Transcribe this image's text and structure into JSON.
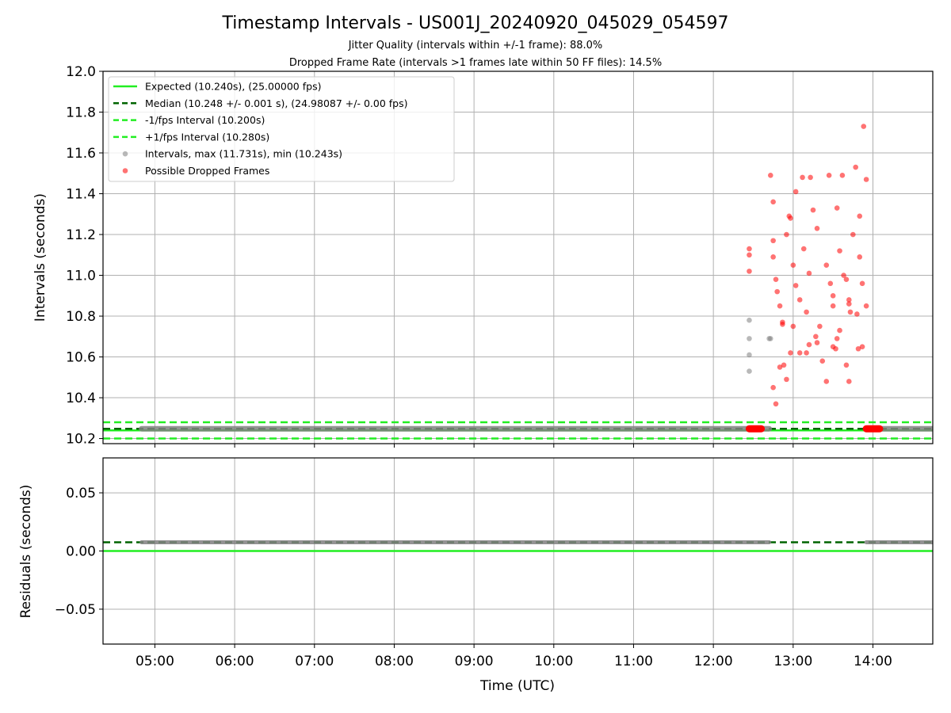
{
  "chart_data": {
    "type": "scatter",
    "title": "Timestamp Intervals - US001J_20240920_045029_054597",
    "subtitles": [
      "Jitter Quality (intervals within +/-1 frame): 88.0%",
      "Dropped Frame Rate (intervals >1 frames late within 50 FF files): 14.5%"
    ],
    "xlabel": "Time (UTC)",
    "x_ticks": [
      "05:00",
      "06:00",
      "07:00",
      "08:00",
      "09:00",
      "10:00",
      "11:00",
      "12:00",
      "13:00",
      "14:00"
    ],
    "x_range": [
      "04:21",
      "14:45"
    ],
    "grid": true,
    "legend_position": "top-left",
    "panels": [
      {
        "name": "intervals",
        "ylabel": "Intervals (seconds)",
        "ylim": [
          10.175,
          12.0
        ],
        "y_ticks": [
          "10.2",
          "10.4",
          "10.6",
          "10.8",
          "11.0",
          "11.2",
          "11.4",
          "11.6",
          "11.8",
          "12.0"
        ],
        "reference_lines": [
          {
            "label": "Expected (10.240s), (25.00000 fps)",
            "value": 10.24,
            "style": "solid",
            "color": "#22ee22"
          },
          {
            "label": "Median (10.248 +/- 0.001 s), (24.98087 +/- 0.00 fps)",
            "value": 10.248,
            "style": "dashed",
            "color": "#006400"
          },
          {
            "label": "-1/fps Interval (10.200s)",
            "value": 10.2,
            "style": "dashed",
            "color": "#22ee22"
          },
          {
            "label": "+1/fps Interval (10.280s)",
            "value": 10.28,
            "style": "dashed",
            "color": "#22ee22"
          }
        ],
        "series": [
          {
            "label": "Intervals, max (11.731s), min (10.243s)",
            "color": "#808080",
            "segments": [
              {
                "x_start": "04:50",
                "x_end": "12:42",
                "y": 10.248
              },
              {
                "x_start": "13:55",
                "x_end": "14:45",
                "y": 10.248
              }
            ],
            "x": [
              "12:27",
              "12:27",
              "12:27",
              "12:27",
              "12:42",
              "12:43"
            ],
            "y": [
              10.53,
              10.61,
              10.69,
              10.78,
              10.69,
              10.69
            ]
          },
          {
            "label": "Possible Dropped Frames",
            "color": "#ff0000",
            "clusters": [
              {
                "x_start": "12:27",
                "x_end": "12:36",
                "y": 10.248
              },
              {
                "x_start": "13:55",
                "x_end": "14:05",
                "y": 10.248
              }
            ],
            "x": [
              "12:27",
              "12:27",
              "12:27",
              "12:43",
              "12:45",
              "12:47",
              "12:48",
              "12:50",
              "12:52",
              "12:55",
              "12:58",
              "13:00",
              "13:02",
              "13:05",
              "13:08",
              "13:10",
              "13:12",
              "13:13",
              "13:18",
              "13:20",
              "13:25",
              "13:28",
              "13:30",
              "13:32",
              "13:33",
              "13:35",
              "13:40",
              "13:42",
              "13:45",
              "13:48",
              "13:50",
              "13:52",
              "13:53",
              "13:55",
              "13:07",
              "13:27",
              "13:55",
              "12:57",
              "13:15",
              "13:37",
              "13:02",
              "13:47",
              "12:53",
              "13:18",
              "13:40",
              "12:45",
              "13:10",
              "13:30",
              "13:52",
              "12:47",
              "13:22",
              "13:42",
              "12:55",
              "13:17",
              "13:35",
              "13:49",
              "12:58",
              "13:25",
              "13:12",
              "13:43",
              "12:52",
              "13:33",
              "13:05",
              "12:45",
              "12:50",
              "13:38",
              "13:50",
              "12:45",
              "13:00",
              "13:30",
              "13:42"
            ],
            "y": [
              11.13,
              11.1,
              11.02,
              11.49,
              11.09,
              10.98,
              10.92,
              10.85,
              10.77,
              11.2,
              11.28,
              11.05,
              10.95,
              10.88,
              11.13,
              10.82,
              11.01,
              11.48,
              11.23,
              10.75,
              11.05,
              10.96,
              10.85,
              10.64,
              11.33,
              11.12,
              10.98,
              10.88,
              11.2,
              10.81,
              11.09,
              10.96,
              11.73,
              10.85,
              11.48,
              11.49,
              11.47,
              11.29,
              11.32,
              11.49,
              11.41,
              11.53,
              10.56,
              10.67,
              10.56,
              10.45,
              10.62,
              10.65,
              10.65,
              10.37,
              10.58,
              10.48,
              10.49,
              10.7,
              10.73,
              10.64,
              10.62,
              10.48,
              10.66,
              10.82,
              10.76,
              10.69,
              10.62,
              11.36,
              10.55,
              11.0,
              11.29,
              11.17,
              10.75,
              10.9,
              10.86
            ]
          }
        ]
      },
      {
        "name": "residuals",
        "ylabel": "Residuals (seconds)",
        "ylim": [
          -0.08,
          0.08
        ],
        "y_ticks": [
          "−0.05",
          "0.00",
          "0.05"
        ],
        "reference_lines": [
          {
            "value": 0.0,
            "style": "solid",
            "color": "#22ee22"
          },
          {
            "value": 0.0075,
            "style": "dashed",
            "color": "#006400"
          }
        ],
        "series": [
          {
            "color": "#808080",
            "segments": [
              {
                "x_start": "04:50",
                "x_end": "12:42",
                "y": 0.0075
              },
              {
                "x_start": "13:55",
                "x_end": "14:45",
                "y": 0.0075
              }
            ]
          }
        ]
      }
    ]
  }
}
